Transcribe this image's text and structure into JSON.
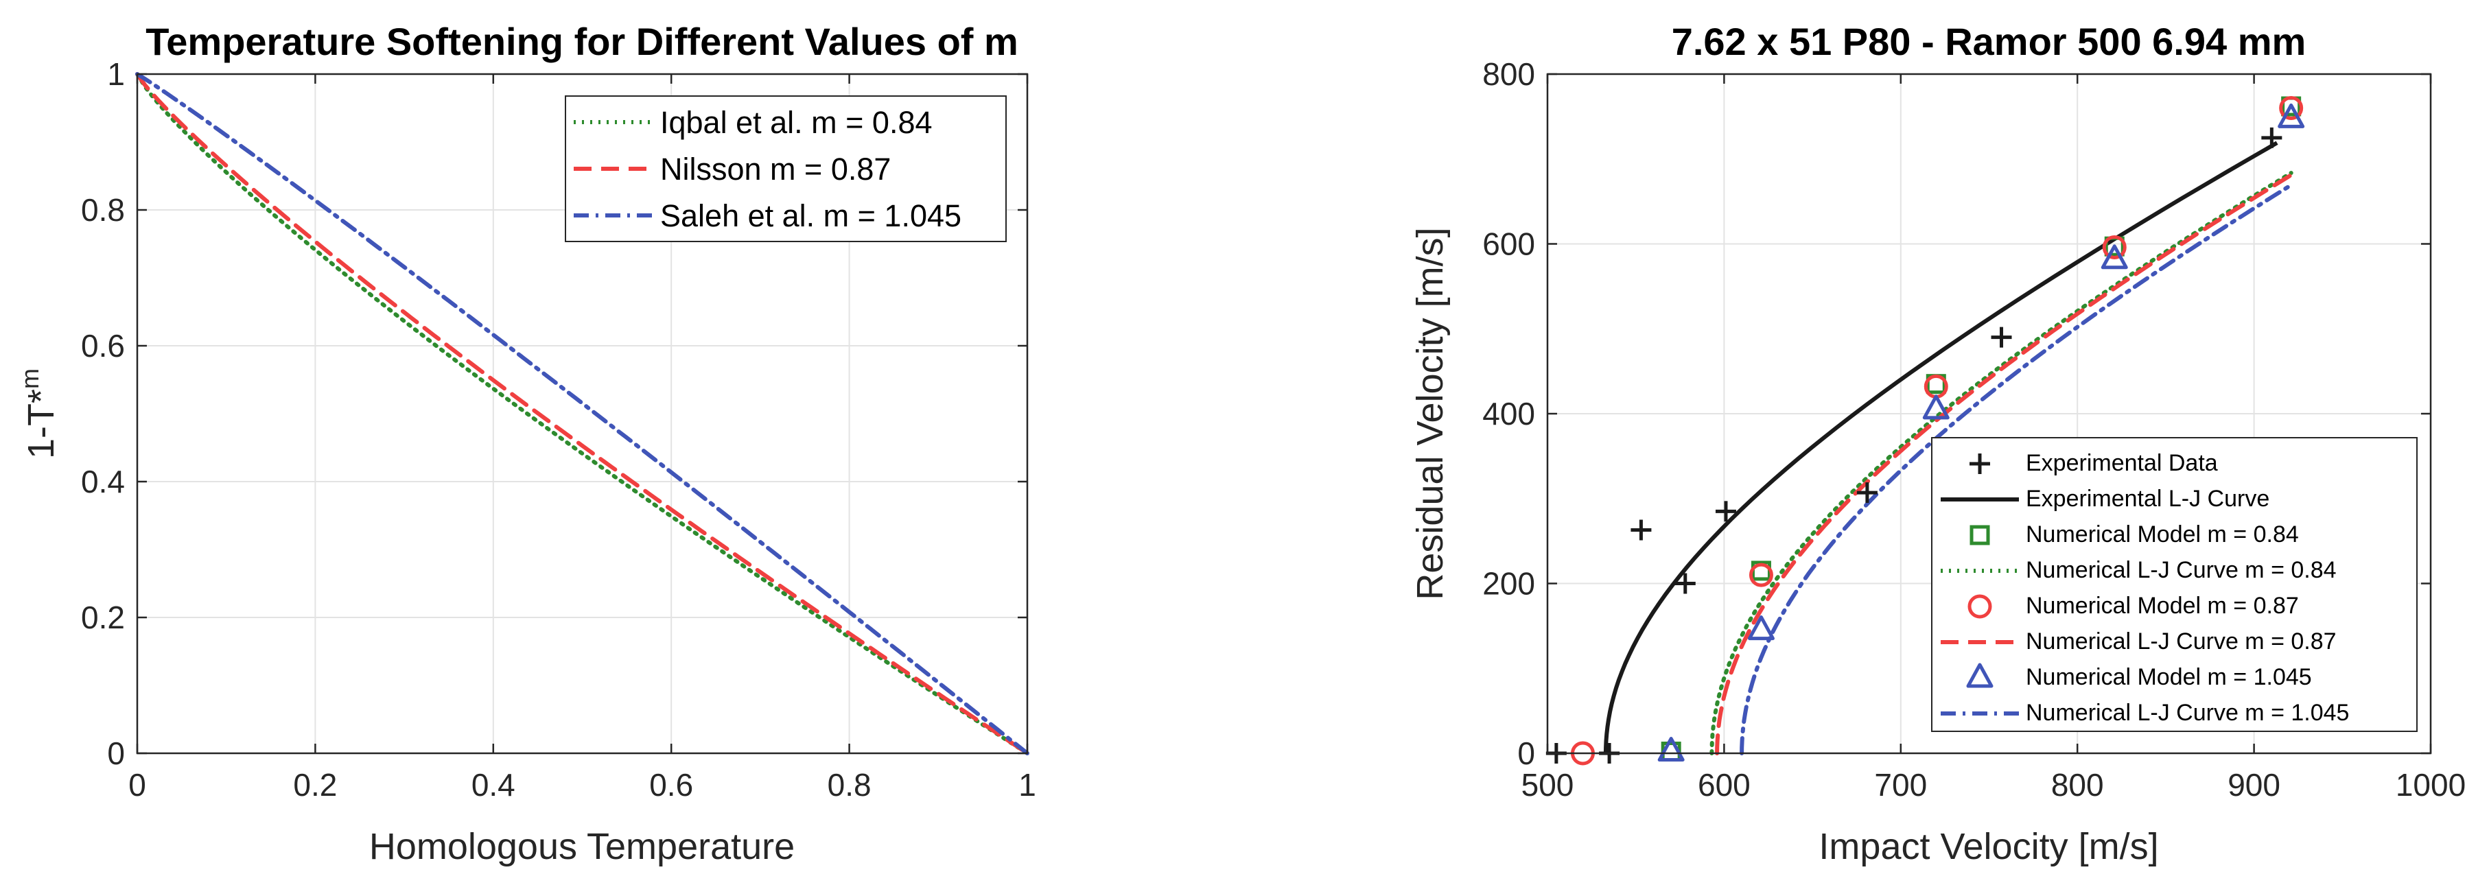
{
  "chart_data": [
    {
      "type": "line",
      "title": "Temperature Softening for Different Values of m",
      "xlabel": "Homologous Temperature",
      "ylabel": "1-T*",
      "ylabel_sup": "m",
      "xlim": [
        0,
        1
      ],
      "ylim": [
        0,
        1
      ],
      "xticks": [
        0,
        0.2,
        0.4,
        0.6,
        0.8,
        1
      ],
      "yticks": [
        0,
        0.2,
        0.4,
        0.6,
        0.8,
        1
      ],
      "xtick_labels": [
        "0",
        "0.2",
        "0.4",
        "0.6",
        "0.8",
        "1"
      ],
      "ytick_labels": [
        "0",
        "0.2",
        "0.4",
        "0.6",
        "0.8",
        "1"
      ],
      "grid": true,
      "legend_location": "top-right",
      "series": [
        {
          "name": "Iqbal et al. m = 0.84",
          "m": 0.84,
          "color": "#2E8B2E",
          "dash": "3 9"
        },
        {
          "name": "Nilsson m = 0.87",
          "m": 0.87,
          "color": "#F04040",
          "dash": "26 14"
        },
        {
          "name": "Saleh et al. m = 1.045",
          "m": 1.045,
          "color": "#4055B8",
          "dash": "22 10 4 10"
        }
      ]
    },
    {
      "type": "scatter",
      "title": "7.62 x 51 P80 - Ramor 500 6.94 mm",
      "xlabel": "Impact Velocity [m/s]",
      "ylabel": "Residual Velocity [m/s]",
      "xlim": [
        500,
        1000
      ],
      "ylim": [
        0,
        800
      ],
      "xticks": [
        500,
        600,
        700,
        800,
        900,
        1000
      ],
      "yticks": [
        0,
        200,
        400,
        600,
        800
      ],
      "xtick_labels": [
        "500",
        "600",
        "700",
        "800",
        "900",
        "1000"
      ],
      "ytick_labels": [
        "0",
        "200",
        "400",
        "600",
        "800"
      ],
      "grid": true,
      "legend_location": "bottom-right",
      "experimental_data": {
        "name": "Experimental Data",
        "color": "#1a1a1a",
        "x": [
          505,
          535,
          553,
          578,
          601,
          681,
          757,
          910
        ],
        "y": [
          0,
          0,
          263,
          200,
          285,
          307,
          490,
          725
        ]
      },
      "experimental_lj": {
        "name": "Experimental L-J Curve",
        "color": "#1a1a1a",
        "vbl": 533,
        "a": 0.97,
        "p": 2.0,
        "x_end": 913
      },
      "numerical_models": [
        {
          "name": "Numerical Model m = 0.84",
          "curve_name": "Numerical L-J Curve m = 0.84",
          "marker": "square",
          "color": "#2E8B2E",
          "dash": "3 9",
          "x": [
            570,
            621,
            720,
            821,
            921
          ],
          "y": [
            2,
            215,
            435,
            597,
            762
          ],
          "vbl": 593,
          "a": 0.97,
          "p": 2.0
        },
        {
          "name": "Numerical Model m = 0.87",
          "curve_name": "Numerical L-J Curve m = 0.87",
          "marker": "circle",
          "color": "#F04040",
          "dash": "26 14",
          "x": [
            520,
            621,
            720,
            821,
            921
          ],
          "y": [
            0,
            210,
            432,
            596,
            760
          ],
          "vbl": 596,
          "a": 0.97,
          "p": 2.0
        },
        {
          "name": "Numerical Model m = 1.045",
          "curve_name": "Numerical L-J Curve m = 1.045",
          "marker": "triangle",
          "color": "#4055B8",
          "dash": "22 10 4 10",
          "x": [
            570,
            621,
            720,
            821,
            921
          ],
          "y": [
            2,
            145,
            405,
            582,
            748
          ],
          "vbl": 610,
          "a": 0.97,
          "p": 2.0
        }
      ]
    }
  ]
}
